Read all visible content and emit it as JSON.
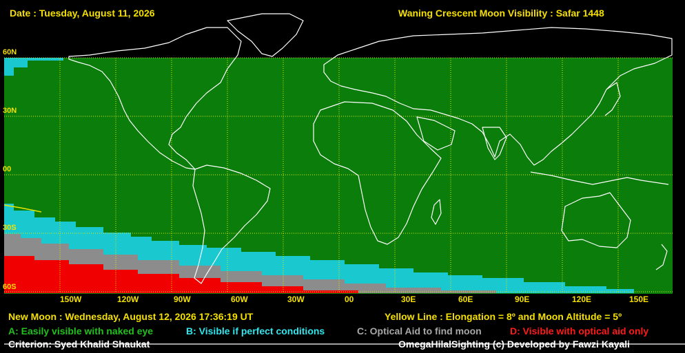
{
  "header": {
    "date": "Date : Tuesday, August 11, 2026",
    "title": "Waning Crescent Moon Visibility : Safar 1448"
  },
  "lat_labels": [
    "60N",
    "30N",
    "00",
    "30S",
    "60S"
  ],
  "lon_labels": [
    "150W",
    "120W",
    "90W",
    "60W",
    "30W",
    "00",
    "30E",
    "60E",
    "90E",
    "120E",
    "150E"
  ],
  "footer": {
    "new_moon": "New Moon : Wednesday, August 12, 2026  17:36:19  UT",
    "yellow_line": "Yellow Line : Elongation = 8º  and Moon Altitude = 5º",
    "legend_a": "A: Easily visible with naked eye",
    "legend_b": "B: Visible if perfect conditions",
    "legend_c": "C: Optical Aid to find moon",
    "legend_d": "D: Visible with optical aid only",
    "criterion": "Criterion: Syed Khalid Shaukat",
    "credit": "OmegaHilalSighting  (c)  Developed by Fawzi Kayali"
  },
  "colors": {
    "zone_a": "#0a7d0a",
    "zone_b": "#19c9cf",
    "zone_c": "#8c8c8c",
    "zone_d": "#f00000",
    "grid": "#e6e600"
  }
}
